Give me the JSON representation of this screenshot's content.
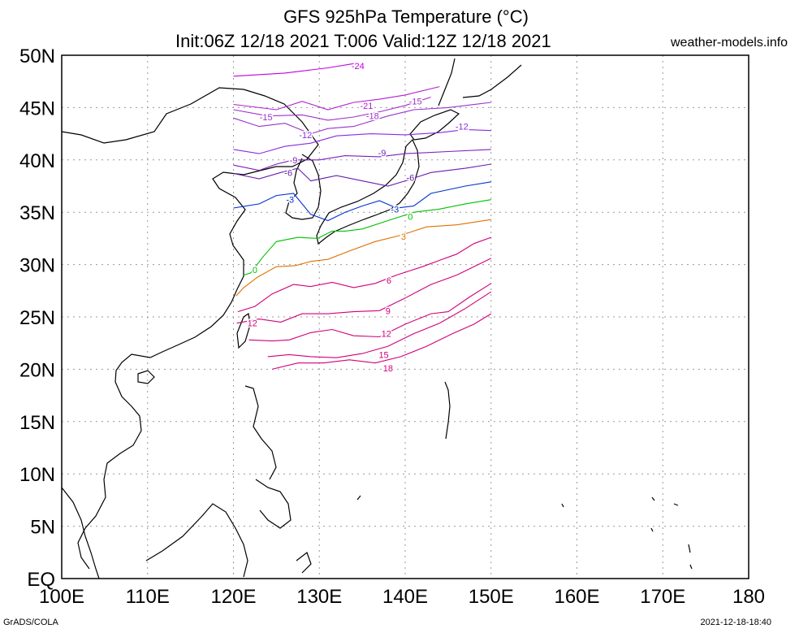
{
  "header": {
    "title": "GFS 925hPa Temperature (°C)",
    "subtitle": "Init:06Z 12/18 2021 T:006 Valid:12Z 12/18 2021",
    "site": "weather-models.info"
  },
  "footer": {
    "software": "GrADS/COLA",
    "timestamp": "2021-12-18-18:40"
  },
  "chart_data": {
    "type": "contour-map",
    "region": "Western Pacific / East Asia",
    "lon_range": [
      100,
      180
    ],
    "lat_range": [
      0,
      50
    ],
    "grid": true,
    "x_ticks": [
      "100E",
      "110E",
      "120E",
      "130E",
      "140E",
      "150E",
      "160E",
      "170E",
      "180"
    ],
    "y_ticks": [
      "50N",
      "45N",
      "40N",
      "35N",
      "30N",
      "25N",
      "20N",
      "15N",
      "10N",
      "5N",
      "EQ"
    ],
    "contour_interval": 3,
    "contours": [
      {
        "value": -24,
        "label": "-24",
        "color": "#c000e0",
        "points": [
          [
            120,
            48
          ],
          [
            126,
            48.3
          ],
          [
            131,
            48.8
          ],
          [
            134,
            49.2
          ]
        ]
      },
      {
        "value": -21,
        "label": "-21",
        "color": "#b020d0",
        "points": [
          [
            120,
            45.3
          ],
          [
            125,
            44.8
          ],
          [
            128,
            45.6
          ],
          [
            131,
            44.8
          ],
          [
            134,
            45.5
          ],
          [
            137,
            45.8
          ],
          [
            140,
            46.2
          ],
          [
            144,
            47
          ]
        ]
      },
      {
        "value": -18,
        "label": "-18",
        "color": "#a030c8",
        "points": [
          [
            120,
            44.8
          ],
          [
            124,
            44.2
          ],
          [
            128,
            44.3
          ],
          [
            131,
            43.8
          ],
          [
            134,
            44.1
          ],
          [
            137,
            44.6
          ],
          [
            140,
            45.2
          ],
          [
            143,
            46
          ]
        ]
      },
      {
        "value": -15,
        "label": "-15",
        "color": "#9933cc",
        "points": [
          [
            120,
            44
          ],
          [
            123,
            43.2
          ],
          [
            126,
            43.5
          ],
          [
            129,
            42.5
          ],
          [
            131,
            43
          ],
          [
            134,
            43.2
          ],
          [
            138,
            44.2
          ],
          [
            141,
            44.8
          ],
          [
            145,
            45
          ],
          [
            150,
            45.5
          ]
        ]
      },
      {
        "value": -12,
        "label": "-12",
        "color": "#8a2be2",
        "points": [
          [
            120,
            41
          ],
          [
            123,
            40.6
          ],
          [
            126,
            41.3
          ],
          [
            129,
            41.6
          ],
          [
            132,
            42.3
          ],
          [
            136,
            42.5
          ],
          [
            140,
            42.4
          ],
          [
            144,
            42.6
          ],
          [
            147,
            42.9
          ],
          [
            150,
            42.8
          ]
        ]
      },
      {
        "value": -9,
        "label": "-9",
        "color": "#7a1fbf",
        "points": [
          [
            120,
            39.5
          ],
          [
            123,
            39
          ],
          [
            125,
            39.6
          ],
          [
            127,
            40
          ],
          [
            130,
            40
          ],
          [
            133,
            40.4
          ],
          [
            137,
            40.3
          ],
          [
            140,
            40.6
          ],
          [
            145,
            40.8
          ],
          [
            150,
            41
          ]
        ]
      },
      {
        "value": -6,
        "label": "-6",
        "color": "#6a1fb0",
        "points": [
          [
            120,
            38.7
          ],
          [
            123,
            38.2
          ],
          [
            125.5,
            38.8
          ],
          [
            127.5,
            39.2
          ],
          [
            129,
            38
          ],
          [
            132,
            38.5
          ],
          [
            135,
            38
          ],
          [
            138,
            37.5
          ],
          [
            140,
            38
          ],
          [
            143,
            38.8
          ],
          [
            147,
            39.2
          ],
          [
            150,
            39.6
          ]
        ]
      },
      {
        "value": -3,
        "label": "-3",
        "color": "#0033cc",
        "points": [
          [
            120,
            35.4
          ],
          [
            123,
            35.8
          ],
          [
            125,
            36.6
          ],
          [
            127,
            36.8
          ],
          [
            129,
            34.8
          ],
          [
            131,
            34.2
          ],
          [
            133,
            35
          ],
          [
            135,
            35.6
          ],
          [
            137,
            36.1
          ],
          [
            139,
            35.4
          ],
          [
            141,
            35.6
          ],
          [
            143,
            36.8
          ],
          [
            147,
            37.5
          ],
          [
            150,
            37.9
          ]
        ]
      },
      {
        "value": 0,
        "label": "0",
        "color": "#00c000",
        "points": [
          [
            121.2,
            29
          ],
          [
            122,
            29.2
          ],
          [
            123.5,
            30.8
          ],
          [
            125,
            32.2
          ],
          [
            127.5,
            32.6
          ],
          [
            129.8,
            32.5
          ],
          [
            131.5,
            33.2
          ],
          [
            133,
            33.2
          ],
          [
            135,
            33.4
          ],
          [
            138,
            34.2
          ],
          [
            141,
            35
          ],
          [
            144,
            35.3
          ],
          [
            147,
            35.8
          ],
          [
            150,
            36.2
          ]
        ]
      },
      {
        "value": 3,
        "label": "3",
        "color": "#e07000",
        "points": [
          [
            120.3,
            27
          ],
          [
            121.2,
            27.8
          ],
          [
            122.8,
            28.8
          ],
          [
            125,
            29.8
          ],
          [
            127.2,
            29.9
          ],
          [
            129,
            30.3
          ],
          [
            131,
            30.5
          ],
          [
            133.5,
            31.3
          ],
          [
            136.5,
            32.2
          ],
          [
            139.5,
            32.8
          ],
          [
            142.5,
            33.6
          ],
          [
            146,
            33.8
          ],
          [
            150,
            34.3
          ]
        ]
      },
      {
        "value": 6,
        "label": "6",
        "color": "#d0007a",
        "points": [
          [
            120.5,
            25.5
          ],
          [
            122.5,
            26
          ],
          [
            124.5,
            27.2
          ],
          [
            127,
            28.1
          ],
          [
            129,
            27.9
          ],
          [
            131.5,
            28.3
          ],
          [
            134,
            27.8
          ],
          [
            136.5,
            28.2
          ],
          [
            139,
            29
          ],
          [
            142,
            29.8
          ],
          [
            144,
            30.4
          ],
          [
            146,
            31
          ],
          [
            148,
            32
          ],
          [
            150,
            32.6
          ]
        ]
      },
      {
        "value": 9,
        "label": "9",
        "color": "#d0007a",
        "points": [
          [
            120.4,
            24.4
          ],
          [
            123,
            24.8
          ],
          [
            125.5,
            24.5
          ],
          [
            128,
            25.3
          ],
          [
            131,
            25.3
          ],
          [
            134,
            25.5
          ],
          [
            137,
            25.6
          ],
          [
            140,
            26.8
          ],
          [
            143,
            28.1
          ],
          [
            146,
            29
          ],
          [
            150,
            30.6
          ]
        ]
      },
      {
        "value": 12,
        "label": "12",
        "color": "#d0007a",
        "points": [
          [
            121.8,
            22.8
          ],
          [
            124.5,
            22.7
          ],
          [
            126.5,
            22.8
          ],
          [
            129,
            23.5
          ],
          [
            131.5,
            23.8
          ],
          [
            134,
            23.2
          ],
          [
            137,
            23.1
          ],
          [
            140,
            24.3
          ],
          [
            143,
            25.3
          ],
          [
            145,
            25.5
          ],
          [
            147.5,
            26.9
          ],
          [
            150,
            28.2
          ]
        ]
      },
      {
        "value": 15,
        "label": "15",
        "color": "#d0007a",
        "points": [
          [
            124,
            21.2
          ],
          [
            126.5,
            21.4
          ],
          [
            129,
            21.2
          ],
          [
            132,
            21.1
          ],
          [
            135,
            21.5
          ],
          [
            138,
            22.2
          ],
          [
            141,
            23.4
          ],
          [
            144,
            24.4
          ],
          [
            147,
            25.8
          ],
          [
            150,
            27.4
          ]
        ]
      },
      {
        "value": 18,
        "label": "18",
        "color": "#d0007a",
        "points": [
          [
            124.5,
            20
          ],
          [
            127.5,
            20.6
          ],
          [
            130.5,
            20.6
          ],
          [
            133.5,
            20.9
          ],
          [
            136.5,
            20.6
          ],
          [
            139.5,
            21.2
          ],
          [
            142.5,
            22.2
          ],
          [
            145.5,
            23.4
          ],
          [
            148,
            24.3
          ],
          [
            150,
            25.3
          ]
        ]
      }
    ],
    "label_positions": [
      {
        "text": "-24",
        "lon": 134.5,
        "lat": 49
      },
      {
        "text": "-21",
        "lon": 135.5,
        "lat": 45.2
      },
      {
        "text": "-15",
        "lon": 141.2,
        "lat": 45.6
      },
      {
        "text": "-18",
        "lon": 136.2,
        "lat": 44.2
      },
      {
        "text": "-15",
        "lon": 123.8,
        "lat": 44.1
      },
      {
        "text": "-12",
        "lon": 128.4,
        "lat": 42.4
      },
      {
        "text": "-12",
        "lon": 146.6,
        "lat": 43.2
      },
      {
        "text": "-9",
        "lon": 127,
        "lat": 40
      },
      {
        "text": "-9",
        "lon": 137.3,
        "lat": 40.7
      },
      {
        "text": "-6",
        "lon": 126.4,
        "lat": 38.8
      },
      {
        "text": "-6",
        "lon": 140.6,
        "lat": 38.3
      },
      {
        "text": "-3",
        "lon": 126.6,
        "lat": 36.2
      },
      {
        "text": "-3",
        "lon": 138.8,
        "lat": 35.3
      },
      {
        "text": "0",
        "lon": 122.5,
        "lat": 29.5
      },
      {
        "text": "0",
        "lon": 140.6,
        "lat": 34.6
      },
      {
        "text": "3",
        "lon": 139.8,
        "lat": 32.7
      },
      {
        "text": "6",
        "lon": 138.1,
        "lat": 28.5
      },
      {
        "text": "9",
        "lon": 138,
        "lat": 25.6
      },
      {
        "text": "12",
        "lon": 122.2,
        "lat": 24.4
      },
      {
        "text": "12",
        "lon": 137.8,
        "lat": 23.4
      },
      {
        "text": "15",
        "lon": 137.5,
        "lat": 21.4
      },
      {
        "text": "18",
        "lon": 138,
        "lat": 20.1
      }
    ]
  }
}
